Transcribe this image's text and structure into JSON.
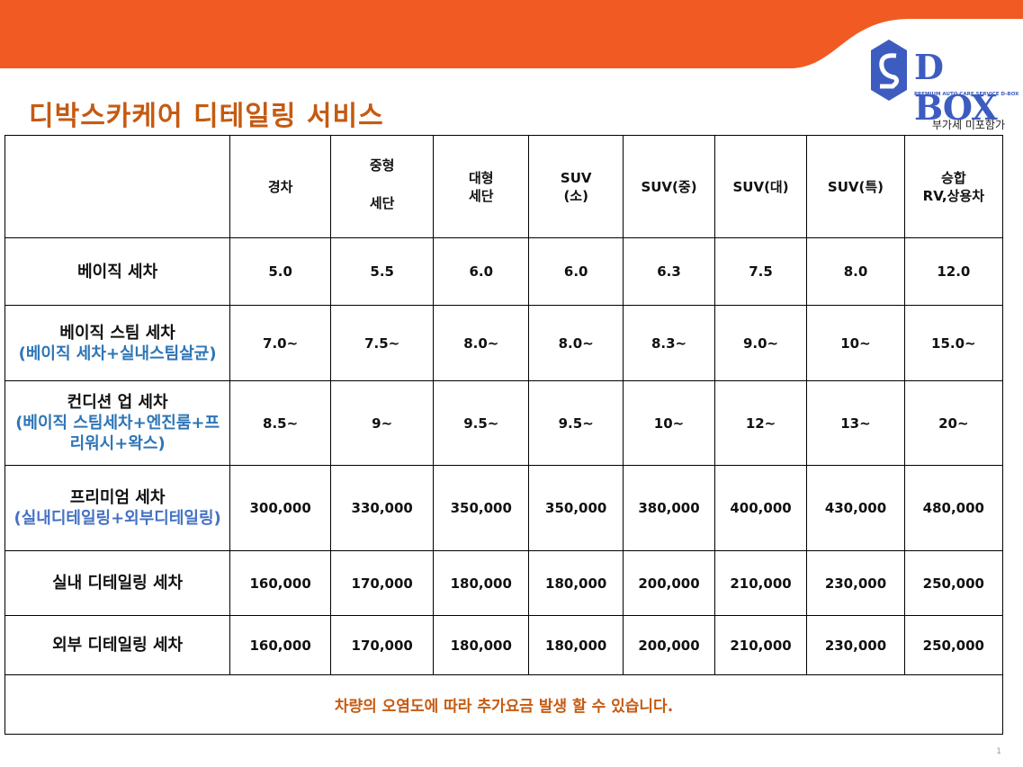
{
  "header": {
    "title": "디박스카케어 디테일링 서비스",
    "logo": "D BOX",
    "logo_tagline": "PREMIUM AUTO CARE SERVICE D-BOX",
    "tax_note": "부가세  미포함가"
  },
  "table": {
    "columns": [
      [
        "경차"
      ],
      [
        "중형",
        "세단"
      ],
      [
        "대형",
        "세단"
      ],
      [
        "SUV",
        "(소)"
      ],
      [
        "SUV(중)"
      ],
      [
        "SUV(대)"
      ],
      [
        "SUV(특)"
      ],
      [
        "승합",
        "RV,상용차"
      ]
    ],
    "rows": [
      {
        "name": "베이직 세차",
        "values": [
          "5.0",
          "5.5",
          "6.0",
          "6.0",
          "6.3",
          "7.5",
          "8.0",
          "12.0"
        ]
      },
      {
        "name": "베이직 스팀 세차",
        "sub": "(베이직 세차+실내스팀살균)",
        "values": [
          "7.0~",
          "7.5~",
          "8.0~",
          "8.0~",
          "8.3~",
          "9.0~",
          "10~",
          "15.0~"
        ]
      },
      {
        "name": "컨디션 업 세차",
        "sub": "(베이직 스팀세차+엔진룸+프리워시+왁스)",
        "values": [
          "8.5~",
          "9~",
          "9.5~",
          "9.5~",
          "10~",
          "12~",
          "13~",
          "20~"
        ]
      },
      {
        "name": "프리미엄 세차",
        "sub": "(실내디테일링+외부디테일링)",
        "values": [
          "300,000",
          "330,000",
          "350,000",
          "350,000",
          "380,000",
          "400,000",
          "430,000",
          "480,000"
        ]
      },
      {
        "name": "실내 디테일링 세차",
        "values": [
          "160,000",
          "170,000",
          "180,000",
          "180,000",
          "200,000",
          "210,000",
          "230,000",
          "250,000"
        ]
      },
      {
        "name": "외부 디테일링 세차",
        "values": [
          "160,000",
          "170,000",
          "180,000",
          "180,000",
          "200,000",
          "210,000",
          "230,000",
          "250,000"
        ]
      }
    ],
    "note": "차량의 오염도에 따라 추가요금 발생 할 수 있습니다."
  },
  "page_number": "1"
}
